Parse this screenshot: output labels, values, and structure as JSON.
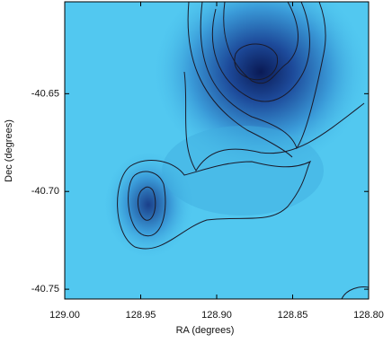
{
  "chart_data": {
    "type": "image",
    "xlabel": "RA (degrees)",
    "ylabel": "Dec (degrees)",
    "xlim": [
      129.0,
      128.8
    ],
    "ylim": [
      -40.755,
      -40.603
    ],
    "xticks": [
      {
        "value": 129.0,
        "label": "129.00"
      },
      128.95,
      {
        "value": 128.9,
        "label": "128.90"
      },
      128.85,
      {
        "value": 128.8,
        "label": "128.80"
      }
    ],
    "yticks": [
      -40.65,
      {
        "value": -40.7,
        "label": "-40.70"
      },
      -40.75
    ]
  }
}
